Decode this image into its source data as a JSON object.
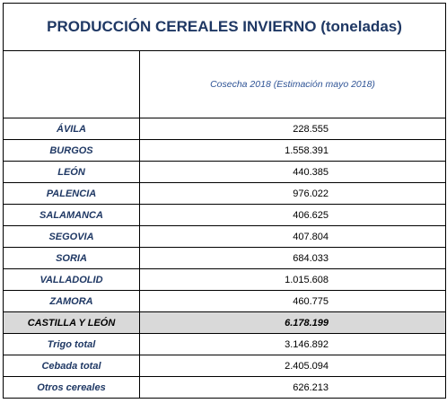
{
  "title": "PRODUCCIÓN CEREALES INVIERNO (toneladas)",
  "column_header": "Cosecha 2018 (Estimación mayo 2018)",
  "provinces": [
    {
      "name": "ÁVILA",
      "value": "228.555"
    },
    {
      "name": "BURGOS",
      "value": "1.558.391"
    },
    {
      "name": "LEÓN",
      "value": "440.385"
    },
    {
      "name": "PALENCIA",
      "value": "976.022"
    },
    {
      "name": "SALAMANCA",
      "value": "406.625"
    },
    {
      "name": "SEGOVIA",
      "value": "407.804"
    },
    {
      "name": "SORIA",
      "value": "684.033"
    },
    {
      "name": "VALLADOLID",
      "value": "1.015.608"
    },
    {
      "name": "ZAMORA",
      "value": "460.775"
    }
  ],
  "total": {
    "name": "CASTILLA Y LEÓN",
    "value": "6.178.199"
  },
  "breakdown": [
    {
      "name": "Trigo total",
      "value": "3.146.892"
    },
    {
      "name": "Cebada total",
      "value": "2.405.094"
    },
    {
      "name": "Otros cereales",
      "value": "626.213"
    }
  ]
}
